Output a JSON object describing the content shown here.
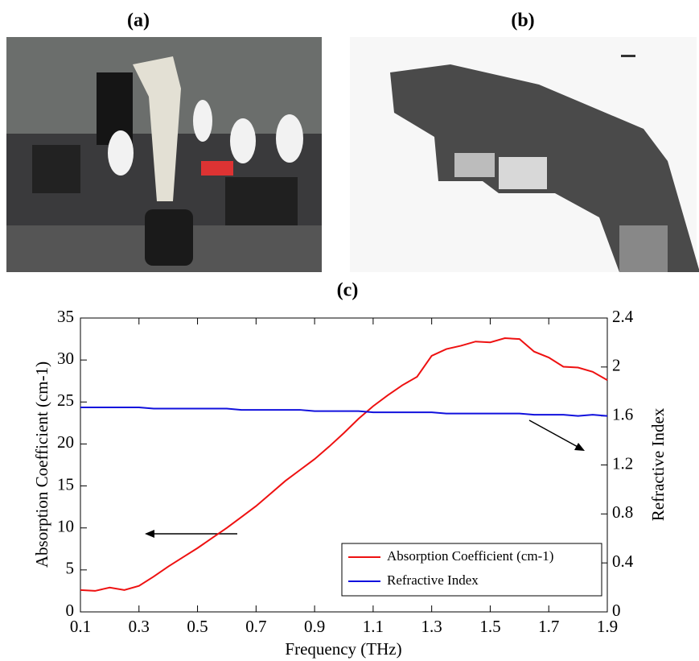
{
  "panels": [
    {
      "label": "(a)"
    },
    {
      "label": "(b)"
    }
  ],
  "chart_data": {
    "type": "line",
    "title": "(c)",
    "x_label": "Frequency (THz)",
    "y_label": "Absorption Coefficient (cm-1)",
    "y2_label": "Refractive Index",
    "x": [
      0.1,
      0.15,
      0.2,
      0.25,
      0.3,
      0.35,
      0.4,
      0.45,
      0.5,
      0.55,
      0.6,
      0.65,
      0.7,
      0.75,
      0.8,
      0.85,
      0.9,
      0.95,
      1.0,
      1.05,
      1.1,
      1.15,
      1.2,
      1.25,
      1.3,
      1.35,
      1.4,
      1.45,
      1.5,
      1.55,
      1.6,
      1.65,
      1.7,
      1.75,
      1.8,
      1.85,
      1.9
    ],
    "series": [
      {
        "name": "Absorption Coefficient (cm-1)",
        "color": "#ee1111",
        "values": [
          2.6,
          2.5,
          2.9,
          2.6,
          3.1,
          4.2,
          5.4,
          6.5,
          7.6,
          8.8,
          10.0,
          11.3,
          12.6,
          14.1,
          15.6,
          16.9,
          18.2,
          19.7,
          21.3,
          23.0,
          24.5,
          25.8,
          27.0,
          28.0,
          30.5,
          31.3,
          31.7,
          32.2,
          32.1,
          32.6,
          32.5,
          31.0,
          30.3,
          29.2,
          29.1,
          28.6,
          27.6
        ]
      },
      {
        "name": "Refractive Index",
        "color": "#1111dd",
        "axis": "y2",
        "values": [
          1.67,
          1.67,
          1.67,
          1.67,
          1.67,
          1.66,
          1.66,
          1.66,
          1.66,
          1.66,
          1.66,
          1.65,
          1.65,
          1.65,
          1.65,
          1.65,
          1.64,
          1.64,
          1.64,
          1.64,
          1.63,
          1.63,
          1.63,
          1.63,
          1.63,
          1.62,
          1.62,
          1.62,
          1.62,
          1.62,
          1.62,
          1.61,
          1.61,
          1.61,
          1.6,
          1.61,
          1.6
        ]
      }
    ],
    "xlim": [
      0.1,
      1.9
    ],
    "xticks": [
      0.1,
      0.3,
      0.5,
      0.7,
      0.9,
      1.1,
      1.3,
      1.5,
      1.7,
      1.9
    ],
    "ylim": [
      0,
      35
    ],
    "yticks": [
      0,
      5,
      10,
      15,
      20,
      25,
      30,
      35
    ],
    "y2lim": [
      0,
      2.4
    ],
    "y2ticks": [
      0,
      0.4,
      0.8,
      1.2,
      1.6,
      2,
      2.4
    ],
    "legend": "lower right"
  }
}
